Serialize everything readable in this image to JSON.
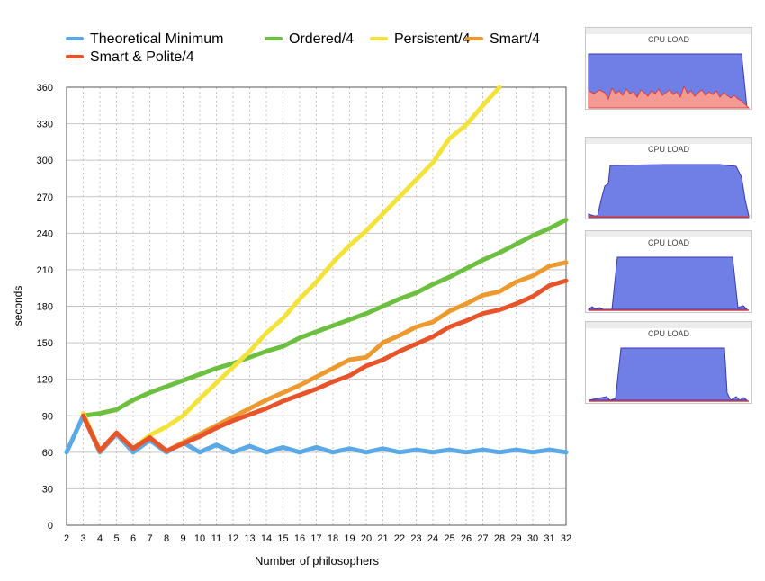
{
  "chart_data": {
    "type": "line",
    "xlabel": "Number of philosophers",
    "ylabel": "seconds",
    "xlim": [
      2,
      32
    ],
    "ylim": [
      0,
      360
    ],
    "y_ticks": [
      0,
      30,
      60,
      90,
      120,
      150,
      180,
      210,
      240,
      270,
      300,
      330,
      360
    ],
    "x": [
      2,
      3,
      4,
      5,
      6,
      7,
      8,
      9,
      10,
      11,
      12,
      13,
      14,
      15,
      16,
      17,
      18,
      19,
      20,
      21,
      22,
      23,
      24,
      25,
      26,
      27,
      28,
      29,
      30,
      31,
      32
    ],
    "grid": true,
    "legend_position": "top",
    "series": [
      {
        "name": "Theoretical Minimum",
        "color": "#5aa9e6",
        "x": [
          2,
          3,
          4,
          5,
          6,
          7,
          8,
          9,
          10,
          11,
          12,
          13,
          14,
          15,
          16,
          17,
          18,
          19,
          20,
          21,
          22,
          23,
          24,
          25,
          26,
          27,
          28,
          29,
          30,
          31,
          32
        ],
        "values": [
          60,
          90,
          60,
          75,
          60,
          70,
          60,
          68,
          60,
          66,
          60,
          65,
          60,
          64,
          60,
          64,
          60,
          63,
          60,
          63,
          60,
          62,
          60,
          62,
          60,
          62,
          60,
          62,
          60,
          62,
          60
        ]
      },
      {
        "name": "Ordered/4",
        "color": "#6cbf3f",
        "x": [
          3,
          4,
          5,
          6,
          7,
          8,
          9,
          10,
          11,
          12,
          13,
          14,
          15,
          16,
          17,
          18,
          19,
          20,
          21,
          22,
          23,
          24,
          25,
          26,
          27,
          28,
          29,
          30,
          31,
          32
        ],
        "values": [
          90,
          92,
          95,
          103,
          109,
          114,
          119,
          124,
          129,
          133,
          138,
          143,
          147,
          154,
          159,
          164,
          169,
          174,
          180,
          186,
          191,
          198,
          204,
          211,
          218,
          224,
          231,
          238,
          244,
          251
        ]
      },
      {
        "name": "Persistent/4",
        "color": "#f2e23a",
        "x": [
          3,
          4,
          5,
          6,
          7,
          8,
          9,
          10,
          11,
          12,
          13,
          14,
          15,
          16,
          17,
          18,
          19,
          20,
          21,
          22,
          23,
          24,
          25,
          26,
          27,
          28
        ],
        "values": [
          92,
          61,
          76,
          63,
          74,
          81,
          90,
          104,
          117,
          130,
          143,
          158,
          170,
          186,
          200,
          216,
          230,
          242,
          256,
          270,
          284,
          298,
          318,
          329,
          345,
          360
        ]
      },
      {
        "name": "Smart/4",
        "color": "#ec9a2f",
        "x": [
          3,
          4,
          5,
          6,
          7,
          8,
          9,
          10,
          11,
          12,
          13,
          14,
          15,
          16,
          17,
          18,
          19,
          20,
          21,
          22,
          23,
          24,
          25,
          26,
          27,
          28,
          29,
          30,
          31,
          32
        ],
        "values": [
          90,
          61,
          76,
          63,
          72,
          61,
          68,
          75,
          82,
          89,
          96,
          103,
          109,
          115,
          122,
          129,
          136,
          138,
          150,
          156,
          163,
          167,
          176,
          182,
          189,
          192,
          200,
          205,
          213,
          216
        ]
      },
      {
        "name": "Smart & Polite/4",
        "color": "#e8542a",
        "x": [
          3,
          4,
          5,
          6,
          7,
          8,
          9,
          10,
          11,
          12,
          13,
          14,
          15,
          16,
          17,
          18,
          19,
          20,
          21,
          22,
          23,
          24,
          25,
          26,
          27,
          28,
          29,
          30,
          31,
          32
        ],
        "values": [
          90,
          61,
          76,
          63,
          72,
          61,
          67,
          73,
          80,
          86,
          91,
          96,
          102,
          107,
          112,
          118,
          123,
          131,
          136,
          143,
          149,
          155,
          163,
          168,
          174,
          177,
          182,
          188,
          197,
          201
        ]
      }
    ]
  },
  "cpu_panels": [
    {
      "title": "CPU LOAD"
    },
    {
      "title": "CPU LOAD"
    },
    {
      "title": "CPU LOAD"
    },
    {
      "title": "CPU LOAD"
    }
  ]
}
